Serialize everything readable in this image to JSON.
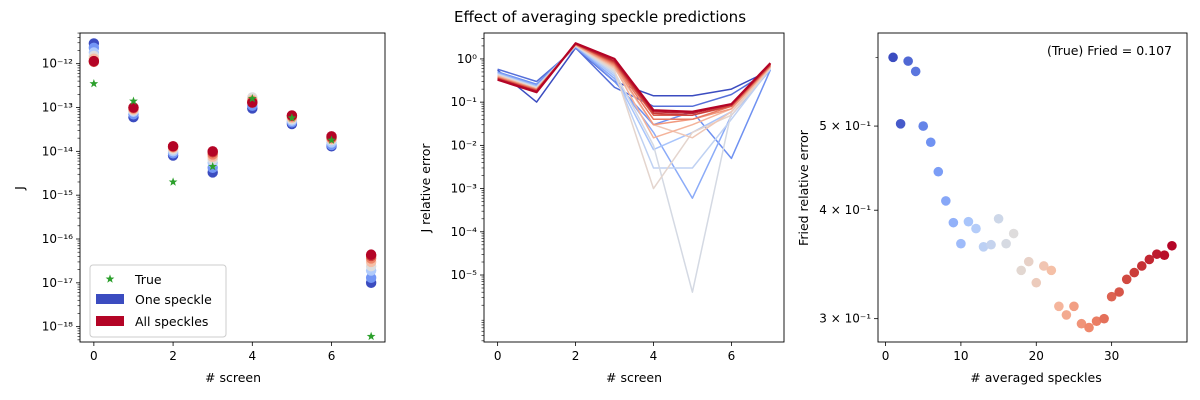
{
  "figure": {
    "title": "Effect of averaging speckle predictions"
  },
  "colormap": [
    "#3b4cc0",
    "#7396f5",
    "#b0cbfc",
    "#dddddd",
    "#f6bfa6",
    "#ee8468",
    "#cc403a",
    "#b40426"
  ],
  "chart_data": [
    {
      "type": "scatter",
      "id": "j_per_screen",
      "title": "",
      "xlabel": "# screen",
      "ylabel": "J",
      "yscale": "log",
      "xlim": [
        -0.35,
        7.35
      ],
      "ylim_exp": [
        -18.35,
        -11.3
      ],
      "xticks": [
        0,
        2,
        4,
        6
      ],
      "yticks_exp": [
        -18,
        -17,
        -16,
        -15,
        -14,
        -13,
        -12
      ],
      "legend_position": "lower-left",
      "legend": [
        {
          "label": "True",
          "marker": "star",
          "color": "#2ca02c"
        },
        {
          "label": "One speckle",
          "marker": "patch",
          "color": "#3b4cc0"
        },
        {
          "label": "All speckles",
          "marker": "patch",
          "color": "#b40426"
        }
      ],
      "true_values": {
        "x": [
          0,
          1,
          2,
          3,
          4,
          5,
          6,
          7
        ],
        "y": [
          3.5e-13,
          1.4e-13,
          2e-15,
          4.5e-15,
          1.6e-13,
          5.8e-14,
          1.8e-14,
          6e-19
        ]
      },
      "speckle_estimates": {
        "note": "dots colored from One speckle (blue) to All speckles (red)",
        "x": [
          0,
          1,
          2,
          3,
          4,
          5,
          6,
          7
        ],
        "y_series": [
          [
            2.9e-12,
            6e-14,
            8e-15,
            3.3e-15,
            9.5e-14,
            4.2e-14,
            1.3e-14,
            1e-17
          ],
          [
            2.3e-12,
            7e-14,
            9e-15,
            4.2e-15,
            1.1e-13,
            4.6e-14,
            1.4e-14,
            1.3e-17
          ],
          [
            1.8e-12,
            8e-14,
            1e-14,
            5.5e-15,
            1.3e-13,
            5e-14,
            1.6e-14,
            1.9e-17
          ],
          [
            1.5e-12,
            8.5e-14,
            1.1e-14,
            6.5e-15,
            1.7e-13,
            5.4e-14,
            1.8e-14,
            2.4e-17
          ],
          [
            1.3e-12,
            9e-14,
            1.2e-14,
            7.5e-15,
            1.5e-13,
            5.8e-14,
            1.9e-14,
            3e-17
          ],
          [
            1.15e-12,
            9.5e-14,
            1.25e-14,
            8.5e-15,
            1.4e-13,
            6.2e-14,
            2e-14,
            3.6e-17
          ],
          [
            1.1e-12,
            1e-13,
            1.3e-14,
            9.5e-15,
            1.3e-13,
            6.5e-14,
            2.1e-14,
            4.1e-17
          ],
          [
            1.15e-12,
            1e-13,
            1.3e-14,
            1e-14,
            1.3e-13,
            6.6e-14,
            2.2e-14,
            4.4e-17
          ]
        ]
      }
    },
    {
      "type": "line",
      "id": "j_relative_error",
      "title": "Effect of averaging speckle predictions",
      "xlabel": "# screen",
      "ylabel": "J relative error",
      "yscale": "log",
      "xlim": [
        -0.35,
        7.35
      ],
      "ylim_exp": [
        -6.55,
        0.6
      ],
      "xticks": [
        0,
        2,
        4,
        6
      ],
      "yticks_exp": [
        -5,
        -4,
        -3,
        -2,
        -1,
        0
      ],
      "x": [
        0,
        1,
        2,
        3,
        4,
        5,
        6,
        7
      ],
      "series": [
        {
          "values": [
            0.55,
            0.1,
            1.8,
            0.3,
            0.14,
            0.14,
            0.2,
            0.55
          ]
        },
        {
          "values": [
            0.58,
            0.3,
            1.8,
            0.22,
            0.08,
            0.08,
            0.15,
            0.55
          ]
        },
        {
          "values": [
            0.5,
            0.26,
            1.9,
            0.3,
            0.03,
            0.06,
            0.005,
            0.56
          ]
        },
        {
          "values": [
            0.48,
            0.24,
            1.9,
            0.35,
            0.02,
            0.0006,
            0.05,
            0.56
          ]
        },
        {
          "values": [
            0.45,
            0.23,
            2.0,
            0.4,
            0.008,
            0.02,
            0.06,
            0.58
          ]
        },
        {
          "values": [
            0.45,
            0.22,
            2.0,
            0.45,
            0.003,
            0.003,
            0.04,
            0.6
          ]
        },
        {
          "values": [
            0.43,
            0.22,
            2.0,
            0.5,
            0.01,
            4e-06,
            0.06,
            0.6
          ]
        },
        {
          "values": [
            0.42,
            0.21,
            2.0,
            0.55,
            0.001,
            0.02,
            0.05,
            0.62
          ]
        },
        {
          "values": [
            0.4,
            0.2,
            2.1,
            0.6,
            0.03,
            0.015,
            0.06,
            0.64
          ]
        },
        {
          "values": [
            0.4,
            0.2,
            2.1,
            0.65,
            0.015,
            0.03,
            0.07,
            0.66
          ]
        },
        {
          "values": [
            0.38,
            0.2,
            2.1,
            0.7,
            0.03,
            0.04,
            0.07,
            0.68
          ]
        },
        {
          "values": [
            0.37,
            0.19,
            2.2,
            0.75,
            0.04,
            0.04,
            0.08,
            0.7
          ]
        },
        {
          "values": [
            0.36,
            0.19,
            2.2,
            0.8,
            0.05,
            0.05,
            0.08,
            0.72
          ]
        },
        {
          "values": [
            0.35,
            0.18,
            2.2,
            0.85,
            0.055,
            0.05,
            0.085,
            0.75
          ]
        },
        {
          "values": [
            0.34,
            0.18,
            2.3,
            0.9,
            0.06,
            0.055,
            0.09,
            0.78
          ]
        },
        {
          "values": [
            0.33,
            0.17,
            2.3,
            1.0,
            0.065,
            0.06,
            0.09,
            0.8
          ]
        }
      ],
      "color_order": "blue (one speckle) to red (all speckles)"
    },
    {
      "type": "scatter",
      "id": "fried_relative_error",
      "title": "",
      "xlabel": "# averaged speckles",
      "ylabel": "Fried relative error",
      "yscale": "log",
      "xlim": [
        -1,
        40
      ],
      "ylim": [
        0.282,
        0.64
      ],
      "xticks": [
        0,
        10,
        20,
        30
      ],
      "yticks": [
        {
          "value": 0.3,
          "label": "3 × 10⁻¹"
        },
        {
          "value": 0.4,
          "label": "4 × 10⁻¹"
        },
        {
          "value": 0.5,
          "label": "5 × 10⁻¹"
        }
      ],
      "annotation": "(True) Fried = 0.107",
      "x": [
        1,
        2,
        3,
        4,
        5,
        6,
        7,
        8,
        9,
        10,
        11,
        12,
        13,
        14,
        15,
        16,
        17,
        18,
        19,
        20,
        21,
        22,
        23,
        24,
        25,
        26,
        27,
        28,
        29,
        30,
        31,
        32,
        33,
        34,
        35,
        36,
        37,
        38
      ],
      "y": [
        0.6,
        0.503,
        0.594,
        0.578,
        0.5,
        0.479,
        0.443,
        0.41,
        0.387,
        0.366,
        0.388,
        0.381,
        0.363,
        0.365,
        0.391,
        0.366,
        0.376,
        0.341,
        0.349,
        0.33,
        0.345,
        0.341,
        0.31,
        0.303,
        0.31,
        0.296,
        0.293,
        0.298,
        0.3,
        0.318,
        0.322,
        0.333,
        0.339,
        0.345,
        0.351,
        0.356,
        0.355,
        0.364
      ]
    }
  ]
}
